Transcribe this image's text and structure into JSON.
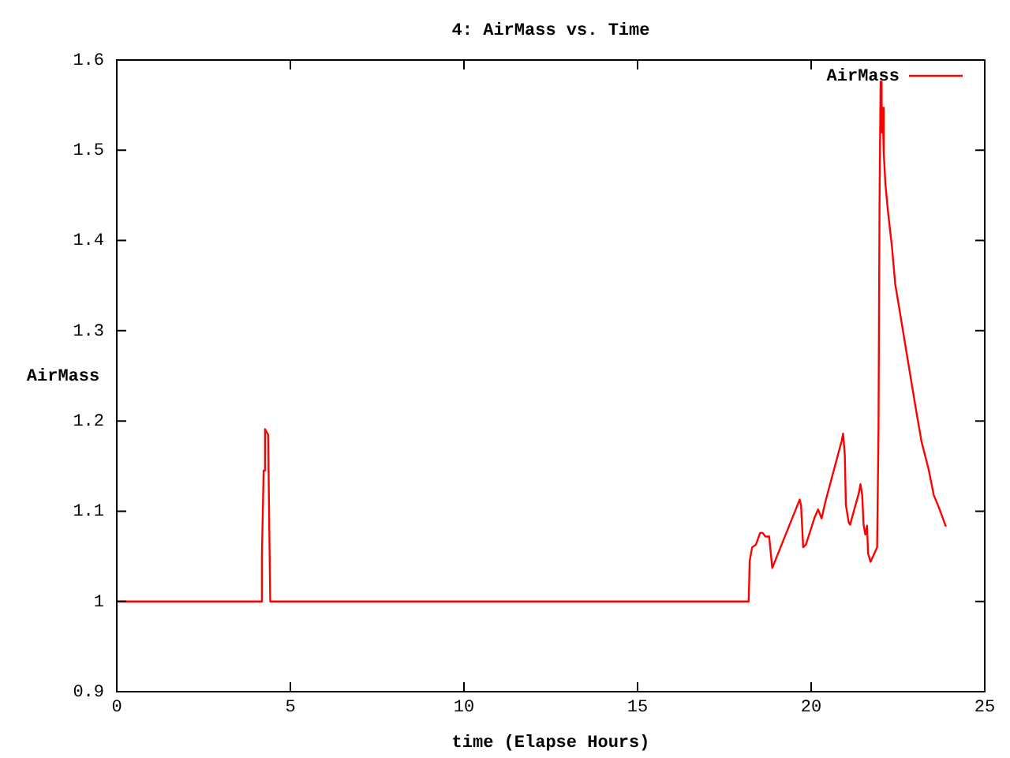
{
  "chart_data": {
    "type": "line",
    "title": "4: AirMass vs. Time",
    "xlabel": "time (Elapse Hours)",
    "ylabel": "AirMass",
    "x": [
      0,
      4.1,
      4.14,
      4.18,
      4.23,
      4.27,
      4.31,
      4.36,
      4.39,
      4.42,
      18.2,
      18.23,
      18.3,
      18.41,
      18.53,
      18.6,
      18.68,
      18.79,
      18.88,
      19.67,
      19.71,
      19.77,
      19.85,
      20.09,
      20.2,
      20.3,
      20.42,
      20.88,
      20.92,
      20.97,
      21.0,
      21.08,
      21.12,
      21.38,
      21.42,
      21.47,
      21.51,
      21.56,
      21.61,
      21.64,
      21.71,
      21.9,
      21.94,
      21.97,
      22.0,
      22.03,
      22.06,
      22.09,
      22.14,
      22.21,
      22.33,
      22.42,
      22.55,
      22.7,
      22.85,
      23.0,
      23.18,
      23.38,
      23.53,
      23.68,
      23.88
    ],
    "series": [
      {
        "name": "AirMass",
        "color": "#ff0000",
        "values": [
          1,
          1,
          1,
          1.051,
          1.145,
          1.191,
          1.188,
          1.185,
          1.089,
          1,
          1,
          1.045,
          1.06,
          1.063,
          1.076,
          1.076,
          1.072,
          1.072,
          1.037,
          1.113,
          1.106,
          1.06,
          1.063,
          1.092,
          1.102,
          1.092,
          1.112,
          1.178,
          1.186,
          1.162,
          1.107,
          1.088,
          1.085,
          1.121,
          1.13,
          1.118,
          1.085,
          1.074,
          1.084,
          1.053,
          1.044,
          1.06,
          1.191,
          1.445,
          1.576,
          1.52,
          1.547,
          1.497,
          1.462,
          1.433,
          1.392,
          1.352,
          1.322,
          1.287,
          1.252,
          1.217,
          1.177,
          1.147,
          1.118,
          1.104,
          1.083
        ]
      }
    ],
    "xlim": [
      0,
      25
    ],
    "xticks": [
      0,
      5,
      10,
      15,
      20,
      25
    ],
    "ylim": [
      0.9,
      1.6
    ],
    "yticks": [
      0.9,
      1,
      1.1,
      1.2,
      1.3,
      1.4,
      1.5,
      1.6
    ],
    "grid": false,
    "legend": "top right",
    "marker": "none",
    "line_style": "solid"
  }
}
